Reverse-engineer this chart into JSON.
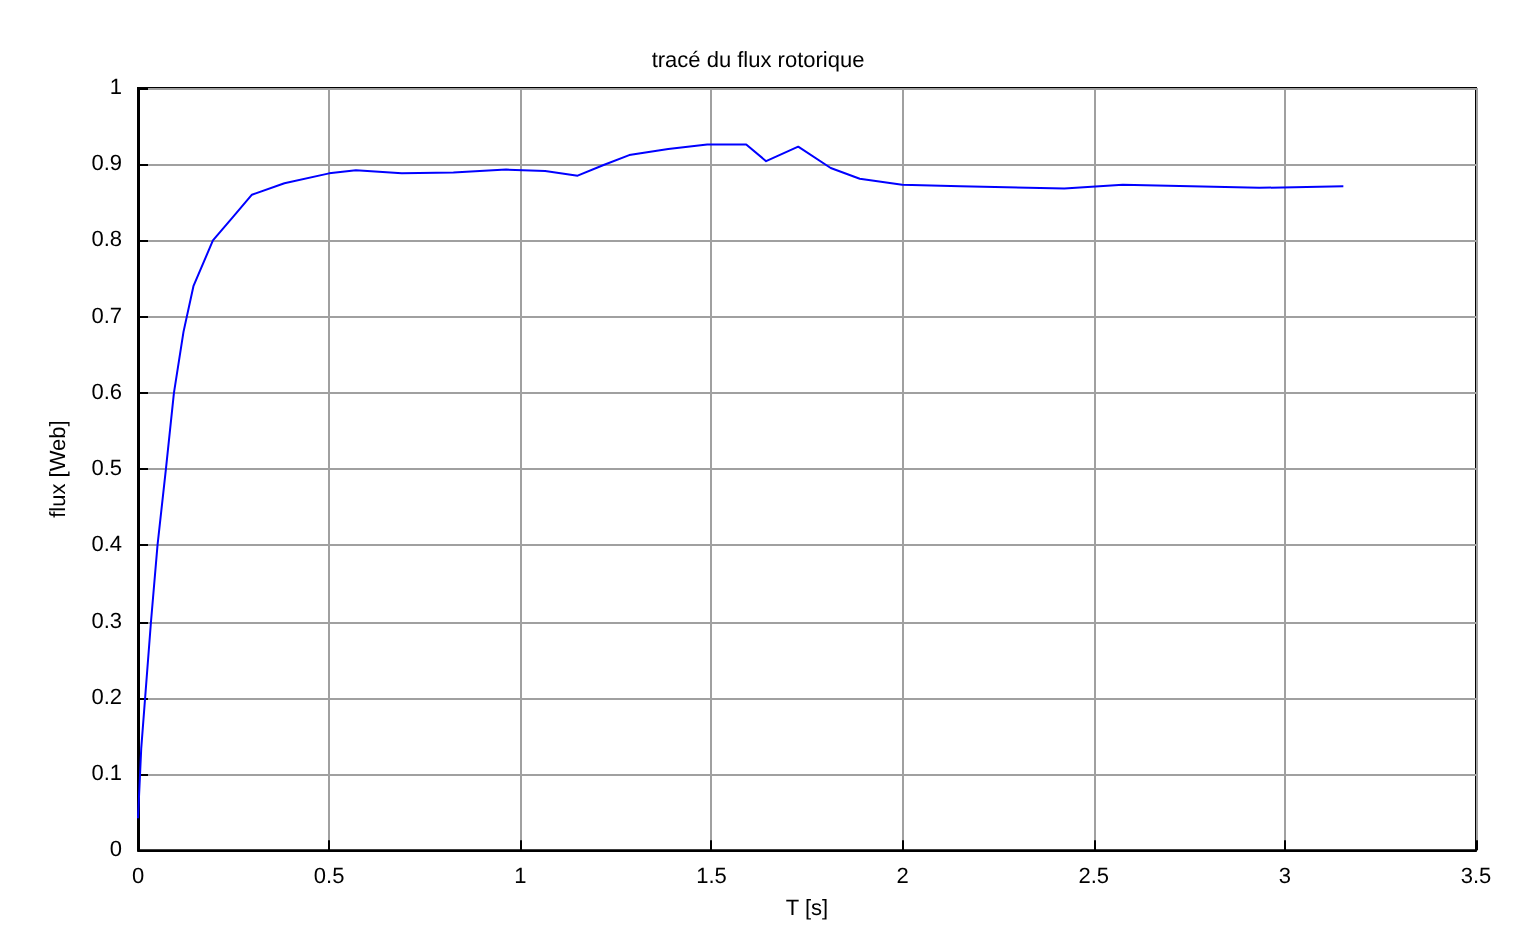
{
  "chart_data": {
    "type": "line",
    "title": "tracé du flux rotorique",
    "xlabel": "T [s]",
    "ylabel": "flux [Web]",
    "x": [
      0,
      0.0085,
      0.034,
      0.051,
      0.073,
      0.094,
      0.119,
      0.145,
      0.196,
      0.247,
      0.298,
      0.383,
      0.5,
      0.57,
      0.69,
      0.825,
      0.963,
      1.065,
      1.15,
      1.218,
      1.285,
      1.387,
      1.489,
      1.591,
      1.643,
      1.727,
      1.812,
      1.888,
      1.999,
      2.151,
      2.423,
      2.576,
      2.933,
      3.153
    ],
    "series": [
      {
        "color": "#0000ff",
        "values": [
          0.042,
          0.134,
          0.3,
          0.4,
          0.5,
          0.6,
          0.68,
          0.74,
          0.8,
          0.83,
          0.86,
          0.875,
          0.888,
          0.892,
          0.888,
          0.889,
          0.893,
          0.891,
          0.885,
          0.899,
          0.912,
          0.92,
          0.926,
          0.926,
          0.904,
          0.923,
          0.895,
          0.881,
          0.873,
          0.871,
          0.868,
          0.873,
          0.869,
          0.871
        ]
      }
    ],
    "xlim": [
      0,
      3.5
    ],
    "xticks": [
      0,
      0.5,
      1,
      1.5,
      2,
      2.5,
      3,
      3.5
    ],
    "ylim": [
      0,
      1
    ],
    "yticks": [
      0,
      0.1,
      0.2,
      0.3,
      0.4,
      0.5,
      0.6,
      0.7,
      0.8,
      0.9,
      1
    ],
    "grid": true,
    "marker": "none",
    "line_style": "solid"
  }
}
